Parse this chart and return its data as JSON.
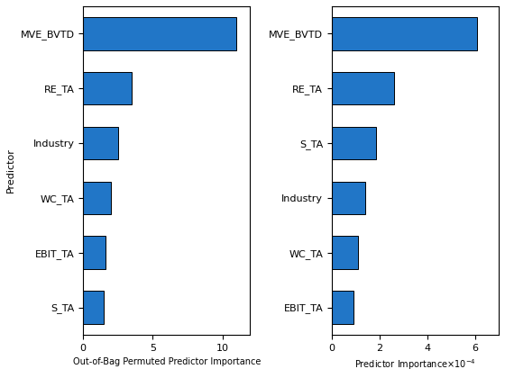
{
  "ax1": {
    "categories": [
      "MVE_BVTD",
      "RE_TA",
      "Industry",
      "WC_TA",
      "EBIT_TA",
      "S_TA"
    ],
    "values": [
      11.0,
      3.5,
      2.5,
      2.0,
      1.6,
      1.5
    ],
    "xlabel": "Out-of-Bag Permuted Predictor Importance",
    "ylabel": "Predictor",
    "xlim": [
      0,
      12
    ],
    "xticks": [
      0,
      5,
      10
    ]
  },
  "ax2": {
    "categories": [
      "MVE_BVTD",
      "RE_TA",
      "S_TA",
      "Industry",
      "WC_TA",
      "EBIT_TA"
    ],
    "values": [
      0.00061,
      0.00026,
      0.000185,
      0.00014,
      0.00011,
      9e-05
    ],
    "xlabel": "Predictor Importance",
    "xlim": [
      0,
      0.0007
    ],
    "xticks": [
      0,
      0.0002,
      0.0004,
      0.0006
    ]
  },
  "bar_color": "#2176c7",
  "bar_edgecolor": "#000000",
  "background_color": "#ffffff"
}
